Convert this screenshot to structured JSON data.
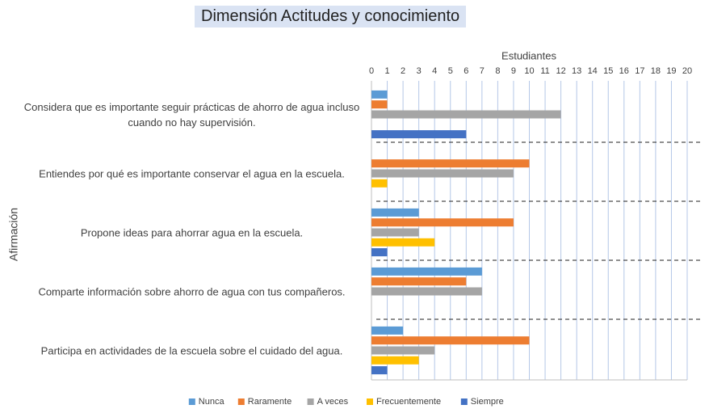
{
  "chart_data": {
    "type": "bar",
    "orientation": "horizontal",
    "title": "Dimensión Actitudes y conocimiento",
    "x_label": "Estudiantes",
    "y_label": "Afirmación",
    "categories": [
      "Considera que es importante seguir prácticas de ahorro de agua incluso cuando no hay supervisión.",
      "Entiendes por qué es importante conservar el agua en la escuela.",
      "Propone ideas para ahorrar agua en la escuela.",
      "Comparte información sobre ahorro de agua con tus compañeros.",
      "Participa en actividades de la escuela sobre el cuidado del agua."
    ],
    "series": [
      {
        "name": "Nunca",
        "color": "#5b9bd5",
        "values": [
          1,
          0,
          3,
          7,
          2
        ]
      },
      {
        "name": "Raramente",
        "color": "#ed7d31",
        "values": [
          1,
          10,
          9,
          6,
          10
        ]
      },
      {
        "name": "A veces",
        "color": "#a5a5a5",
        "values": [
          12,
          9,
          3,
          7,
          4
        ]
      },
      {
        "name": "Frecuentemente",
        "color": "#ffc000",
        "values": [
          0,
          1,
          4,
          0,
          3
        ]
      },
      {
        "name": "Siempre",
        "color": "#4472c4",
        "values": [
          6,
          0,
          1,
          0,
          1
        ]
      }
    ],
    "xlim": [
      0,
      20
    ],
    "xticks": [
      0,
      1,
      2,
      3,
      4,
      5,
      6,
      7,
      8,
      9,
      10,
      11,
      12,
      13,
      14,
      15,
      16,
      17,
      18,
      19,
      20
    ],
    "grid": true,
    "legend": "bottom"
  }
}
